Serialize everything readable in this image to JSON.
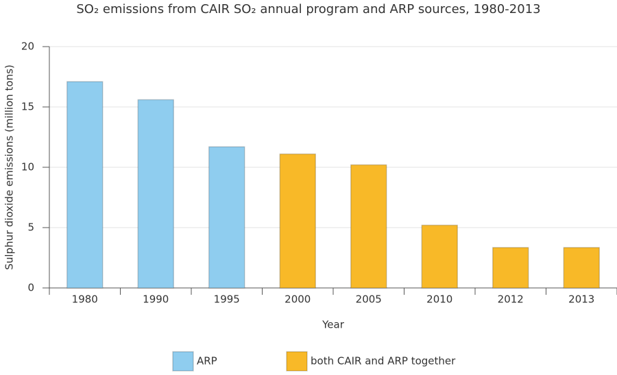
{
  "chart_data": {
    "type": "bar",
    "title": "SO₂ emissions from CAIR SO₂ annual program and ARP sources, 1980-2013",
    "x_label": "Year",
    "y_label": "Sulphur dioxide emissions (million tons)",
    "categories": [
      "1980",
      "1990",
      "1995",
      "2000",
      "2005",
      "2010",
      "2012",
      "2013"
    ],
    "series": [
      {
        "name": "ARP",
        "color": "#8fcdef",
        "values": [
          17.1,
          15.6,
          11.7,
          null,
          null,
          null,
          null,
          null
        ]
      },
      {
        "name": "both CAIR and ARP together",
        "color": "#f8b928",
        "values": [
          null,
          null,
          null,
          11.1,
          10.2,
          5.2,
          3.35,
          3.35
        ]
      }
    ],
    "ylim": [
      0,
      20
    ],
    "yticks": [
      0,
      5,
      10,
      15,
      20
    ],
    "grid": true
  }
}
